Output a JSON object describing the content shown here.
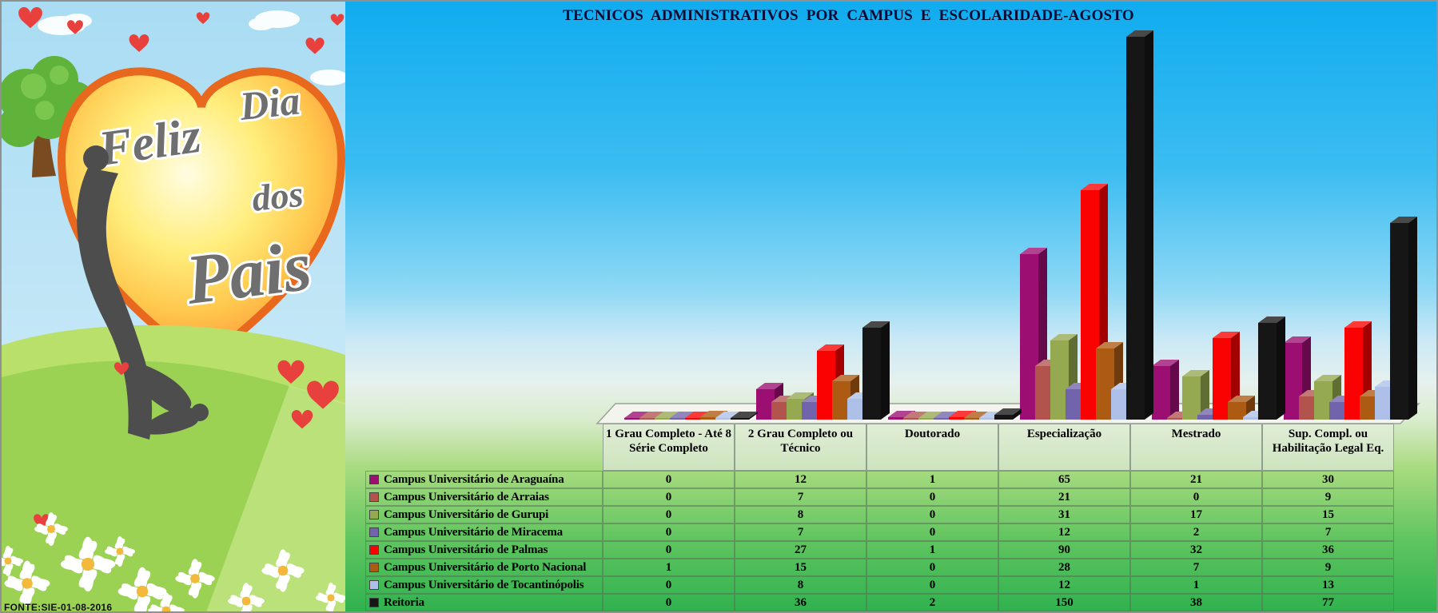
{
  "title": "TECNICOS ADMINISTRATIVOS  POR CAMPUS E ESCOLARIDADE-AGOSTO",
  "source_note": "FONTE:SIE-01-08-2016",
  "artwork": {
    "greeting": [
      "Feliz",
      "Dia",
      "dos",
      "Pais"
    ]
  },
  "chart_data": {
    "type": "bar",
    "title": "TECNICOS ADMINISTRATIVOS  POR CAMPUS E ESCOLARIDADE-AGOSTO",
    "categories": [
      "1 Grau Completo - Até 8 Série Completo",
      "2 Grau Completo ou Técnico",
      "Doutorado",
      "Especialização",
      "Mestrado",
      "Sup. Compl. ou Habilitação Legal Eq."
    ],
    "series": [
      {
        "name": "Campus Universitário de Araguaína",
        "color": "#9C0E72",
        "values": [
          0,
          12,
          1,
          65,
          21,
          30
        ]
      },
      {
        "name": "Campus Universitário de Arraias",
        "color": "#B2534E",
        "values": [
          0,
          7,
          0,
          21,
          0,
          9
        ]
      },
      {
        "name": "Campus Universitário de Gurupi",
        "color": "#94A950",
        "values": [
          0,
          8,
          0,
          31,
          17,
          15
        ]
      },
      {
        "name": "Campus Universitário de Miracema",
        "color": "#7264AC",
        "values": [
          0,
          7,
          0,
          12,
          2,
          7
        ]
      },
      {
        "name": "Campus Universitário de Palmas",
        "color": "#FB0202",
        "values": [
          0,
          27,
          1,
          90,
          32,
          36
        ]
      },
      {
        "name": "Campus Universitário de Porto Nacional",
        "color": "#AD5A12",
        "values": [
          1,
          15,
          0,
          28,
          7,
          9
        ]
      },
      {
        "name": "Campus Universitário de Tocantinópolis",
        "color": "#AEC0E8",
        "values": [
          0,
          8,
          0,
          12,
          1,
          13
        ]
      },
      {
        "name": "Reitoria",
        "color": "#161616",
        "values": [
          0,
          36,
          2,
          150,
          38,
          77
        ]
      }
    ],
    "ylim": [
      0,
      150
    ],
    "grid": false,
    "legend_position": "table-left-column",
    "table_shown": true
  }
}
